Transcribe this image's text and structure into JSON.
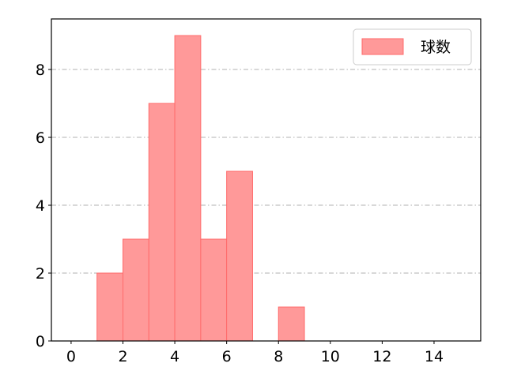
{
  "chart_data": {
    "type": "bar",
    "subtype": "histogram",
    "bins": [
      [
        1,
        2
      ],
      [
        2,
        3
      ],
      [
        3,
        4
      ],
      [
        4,
        5
      ],
      [
        5,
        6
      ],
      [
        6,
        7
      ],
      [
        8,
        9
      ]
    ],
    "values": [
      2,
      3,
      7,
      9,
      3,
      5,
      1
    ],
    "series": [
      {
        "name": "球数",
        "color": "#ff9999",
        "edgecolor": "#ff6b6b"
      }
    ],
    "xlim": [
      -0.76,
      15.8
    ],
    "ylim": [
      0,
      9.49
    ],
    "xticks": [
      0,
      2,
      4,
      6,
      8,
      10,
      12,
      14
    ],
    "yticks": [
      0,
      2,
      4,
      6,
      8
    ],
    "grid": "y, dash-dot",
    "legend": "top-right",
    "title": "",
    "xlabel": "",
    "ylabel": ""
  }
}
